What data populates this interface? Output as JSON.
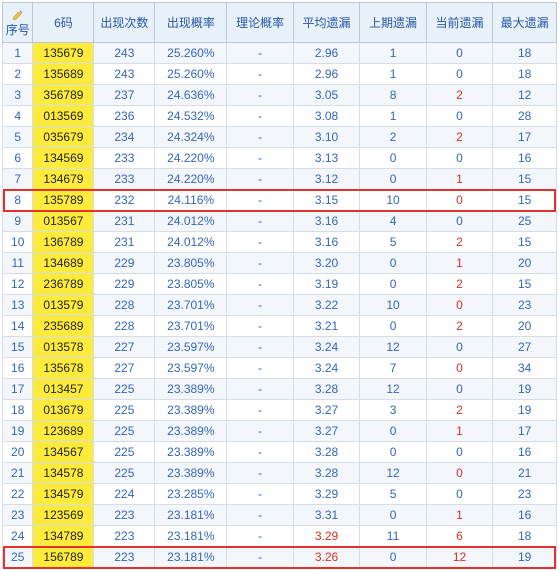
{
  "columns": {
    "idx": "序号",
    "code": "6码",
    "count": "出现次数",
    "prob": "出现概率",
    "theo": "理论概率",
    "avg": "平均遗漏",
    "prev": "上期遗漏",
    "curr": "当前遗漏",
    "max": "最大遗漏"
  },
  "highlight_rows": [
    8,
    25
  ],
  "colors": {
    "header_bg": "#e8f0f8",
    "header_text": "#2456a8",
    "border": "#b8c8dc",
    "cell_border": "#d4dde8",
    "even_bg": "#f3f6fa",
    "odd_bg": "#ffffff",
    "code_bg": "#ffeb3b",
    "link": "#3366bb",
    "red": "#d93025",
    "highlight_border": "#e53030"
  },
  "rows": [
    {
      "idx": 1,
      "code": "135679",
      "count": 243,
      "prob": "25.260%",
      "theo": "-",
      "avg": "2.96",
      "prev": 1,
      "curr": 0,
      "max": 18,
      "curr_red": false,
      "avg_red": false
    },
    {
      "idx": 2,
      "code": "135689",
      "count": 243,
      "prob": "25.260%",
      "theo": "-",
      "avg": "2.96",
      "prev": 1,
      "curr": 0,
      "max": 18,
      "curr_red": false,
      "avg_red": false
    },
    {
      "idx": 3,
      "code": "356789",
      "count": 237,
      "prob": "24.636%",
      "theo": "-",
      "avg": "3.05",
      "prev": 8,
      "curr": 2,
      "max": 12,
      "curr_red": true,
      "avg_red": false
    },
    {
      "idx": 4,
      "code": "013569",
      "count": 236,
      "prob": "24.532%",
      "theo": "-",
      "avg": "3.08",
      "prev": 1,
      "curr": 0,
      "max": 28,
      "curr_red": false,
      "avg_red": false
    },
    {
      "idx": 5,
      "code": "035679",
      "count": 234,
      "prob": "24.324%",
      "theo": "-",
      "avg": "3.10",
      "prev": 2,
      "curr": 2,
      "max": 17,
      "curr_red": true,
      "avg_red": false
    },
    {
      "idx": 6,
      "code": "134569",
      "count": 233,
      "prob": "24.220%",
      "theo": "-",
      "avg": "3.13",
      "prev": 0,
      "curr": 0,
      "max": 16,
      "curr_red": false,
      "avg_red": false
    },
    {
      "idx": 7,
      "code": "134679",
      "count": 233,
      "prob": "24.220%",
      "theo": "-",
      "avg": "3.12",
      "prev": 0,
      "curr": 1,
      "max": 15,
      "curr_red": true,
      "avg_red": false
    },
    {
      "idx": 8,
      "code": "135789",
      "count": 232,
      "prob": "24.116%",
      "theo": "-",
      "avg": "3.15",
      "prev": 10,
      "curr": 0,
      "max": 15,
      "curr_red": true,
      "avg_red": false
    },
    {
      "idx": 9,
      "code": "013567",
      "count": 231,
      "prob": "24.012%",
      "theo": "-",
      "avg": "3.16",
      "prev": 4,
      "curr": 0,
      "max": 25,
      "curr_red": false,
      "avg_red": false
    },
    {
      "idx": 10,
      "code": "136789",
      "count": 231,
      "prob": "24.012%",
      "theo": "-",
      "avg": "3.16",
      "prev": 5,
      "curr": 2,
      "max": 15,
      "curr_red": true,
      "avg_red": false
    },
    {
      "idx": 11,
      "code": "134689",
      "count": 229,
      "prob": "23.805%",
      "theo": "-",
      "avg": "3.20",
      "prev": 0,
      "curr": 1,
      "max": 20,
      "curr_red": true,
      "avg_red": false
    },
    {
      "idx": 12,
      "code": "236789",
      "count": 229,
      "prob": "23.805%",
      "theo": "-",
      "avg": "3.19",
      "prev": 0,
      "curr": 2,
      "max": 15,
      "curr_red": true,
      "avg_red": false
    },
    {
      "idx": 13,
      "code": "013579",
      "count": 228,
      "prob": "23.701%",
      "theo": "-",
      "avg": "3.22",
      "prev": 10,
      "curr": 0,
      "max": 23,
      "curr_red": true,
      "avg_red": false
    },
    {
      "idx": 14,
      "code": "235689",
      "count": 228,
      "prob": "23.701%",
      "theo": "-",
      "avg": "3.21",
      "prev": 0,
      "curr": 2,
      "max": 20,
      "curr_red": true,
      "avg_red": false
    },
    {
      "idx": 15,
      "code": "013578",
      "count": 227,
      "prob": "23.597%",
      "theo": "-",
      "avg": "3.24",
      "prev": 12,
      "curr": 0,
      "max": 27,
      "curr_red": false,
      "avg_red": false
    },
    {
      "idx": 16,
      "code": "135678",
      "count": 227,
      "prob": "23.597%",
      "theo": "-",
      "avg": "3.24",
      "prev": 7,
      "curr": 0,
      "max": 34,
      "curr_red": true,
      "avg_red": false
    },
    {
      "idx": 17,
      "code": "013457",
      "count": 225,
      "prob": "23.389%",
      "theo": "-",
      "avg": "3.28",
      "prev": 12,
      "curr": 0,
      "max": 19,
      "curr_red": false,
      "avg_red": false
    },
    {
      "idx": 18,
      "code": "013679",
      "count": 225,
      "prob": "23.389%",
      "theo": "-",
      "avg": "3.27",
      "prev": 3,
      "curr": 2,
      "max": 19,
      "curr_red": true,
      "avg_red": false
    },
    {
      "idx": 19,
      "code": "123689",
      "count": 225,
      "prob": "23.389%",
      "theo": "-",
      "avg": "3.27",
      "prev": 0,
      "curr": 1,
      "max": 17,
      "curr_red": true,
      "avg_red": false
    },
    {
      "idx": 20,
      "code": "134567",
      "count": 225,
      "prob": "23.389%",
      "theo": "-",
      "avg": "3.28",
      "prev": 0,
      "curr": 0,
      "max": 16,
      "curr_red": false,
      "avg_red": false
    },
    {
      "idx": 21,
      "code": "134578",
      "count": 225,
      "prob": "23.389%",
      "theo": "-",
      "avg": "3.28",
      "prev": 12,
      "curr": 0,
      "max": 21,
      "curr_red": true,
      "avg_red": false
    },
    {
      "idx": 22,
      "code": "134579",
      "count": 224,
      "prob": "23.285%",
      "theo": "-",
      "avg": "3.29",
      "prev": 5,
      "curr": 0,
      "max": 23,
      "curr_red": false,
      "avg_red": false
    },
    {
      "idx": 23,
      "code": "123569",
      "count": 223,
      "prob": "23.181%",
      "theo": "-",
      "avg": "3.31",
      "prev": 0,
      "curr": 1,
      "max": 16,
      "curr_red": true,
      "avg_red": false
    },
    {
      "idx": 24,
      "code": "134789",
      "count": 223,
      "prob": "23.181%",
      "theo": "-",
      "avg": "3.29",
      "prev": 11,
      "curr": 6,
      "max": 18,
      "curr_red": true,
      "avg_red": true
    },
    {
      "idx": 25,
      "code": "156789",
      "count": 223,
      "prob": "23.181%",
      "theo": "-",
      "avg": "3.26",
      "prev": 0,
      "curr": 12,
      "max": 19,
      "curr_red": true,
      "avg_red": true
    }
  ]
}
